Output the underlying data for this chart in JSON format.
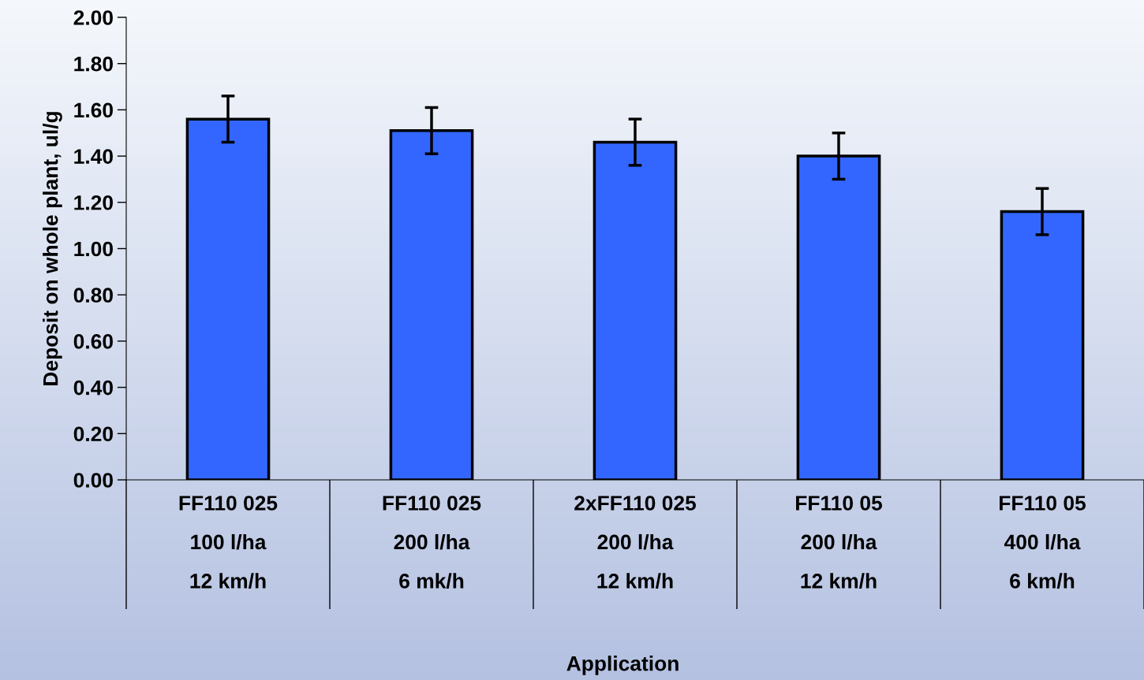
{
  "chart_data": {
    "type": "bar",
    "xlabel": "Application",
    "ylabel": "Deposit on whole plant, ul/g",
    "categories": [
      "FF110 025\n100 l/ha\n12 km/h",
      "FF110 025\n200 l/ha\n6 mk/h",
      "2xFF110 025\n200 l/ha\n12 km/h",
      "FF110 05\n200 l/ha\n12 km/h",
      "FF110 05\n400 l/ha\n6 km/h"
    ],
    "values": [
      1.56,
      1.51,
      1.46,
      1.4,
      1.16
    ],
    "errors": [
      0.1,
      0.1,
      0.1,
      0.1,
      0.1
    ],
    "color": "#3366ff",
    "ylim": [
      0,
      2
    ],
    "yticks": [
      {
        "value": 0,
        "label": "0.00"
      },
      {
        "value": 0.2,
        "label": "0.20"
      },
      {
        "value": 0.4,
        "label": "0.40"
      },
      {
        "value": 0.6,
        "label": "0.60"
      },
      {
        "value": 0.8,
        "label": "0.80"
      },
      {
        "value": 1.0,
        "label": "1.00"
      },
      {
        "value": 1.2,
        "label": "1.20"
      },
      {
        "value": 1.4,
        "label": "1.40"
      },
      {
        "value": 1.6,
        "label": "1.60"
      },
      {
        "value": 1.8,
        "label": "1.80"
      },
      {
        "value": 2.0,
        "label": "2.00"
      }
    ],
    "grid": false
  }
}
